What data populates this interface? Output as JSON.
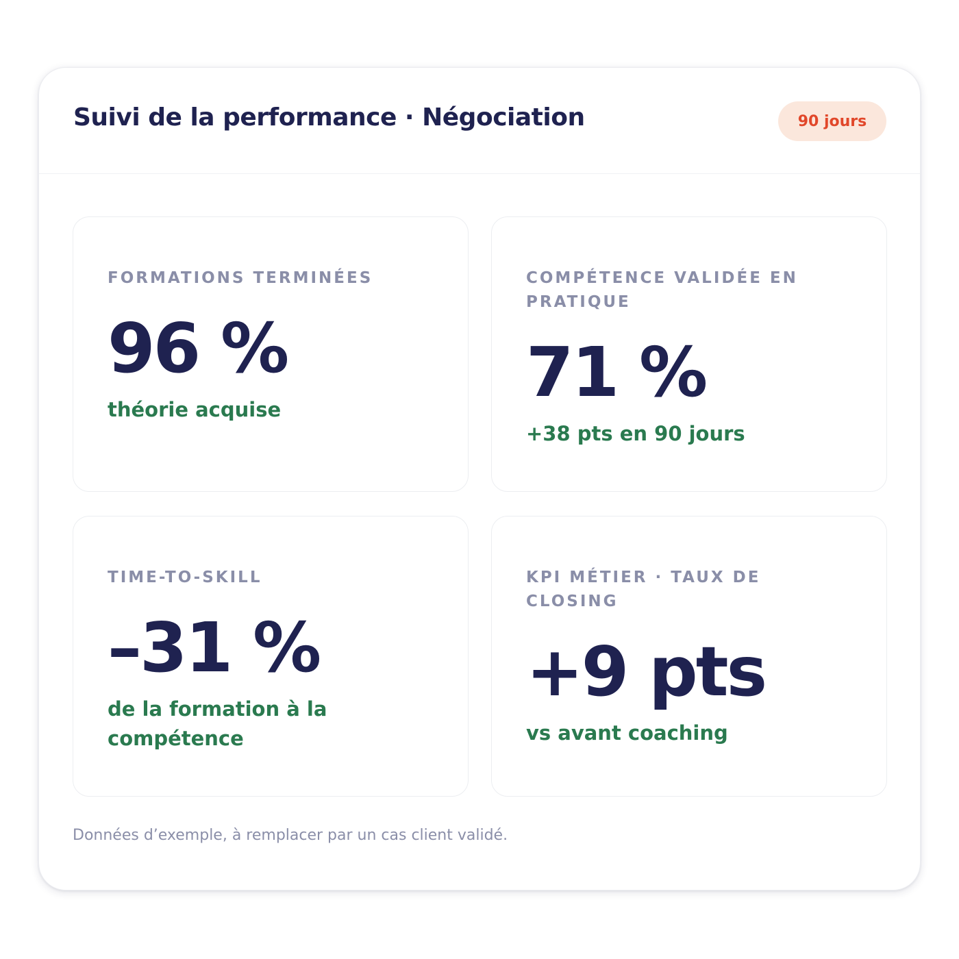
{
  "header": {
    "title": "Suivi de la performance · Négociation",
    "badge": "90 jours"
  },
  "colors": {
    "title": "#1f2250",
    "label": "#8a8ea8",
    "positive": "#2a7a4f",
    "badge_bg": "#fbe7dc",
    "badge_text": "#e1472a"
  },
  "cards": [
    {
      "label": "FORMATIONS TERMINÉES",
      "value": "96 %",
      "sub": "théorie acquise"
    },
    {
      "label": "COMPÉTENCE VALIDÉE EN PRATIQUE",
      "value": "71 %",
      "sub": "+38 pts en 90 jours"
    },
    {
      "label": "TIME-TO-SKILL",
      "value": "–31 %",
      "sub": "de la formation à la compétence"
    },
    {
      "label": "KPI MÉTIER · TAUX DE CLOSING",
      "value": "+9 pts",
      "sub": "vs avant coaching"
    }
  ],
  "footnote": "Données d’exemple, à remplacer par un cas client validé."
}
